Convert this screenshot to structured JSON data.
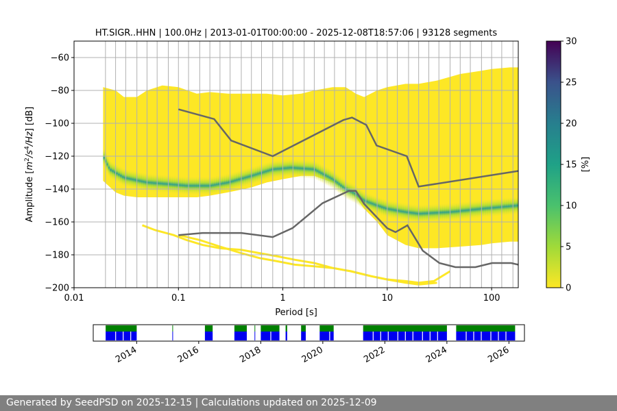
{
  "chart_data": {
    "type": "heatmap",
    "title": "HT.SIGR..HHN | 100.0Hz | 2013-01-01T00:00:00 - 2025-12-08T18:57:06 | 93128 segments",
    "xlabel": "Period [s]",
    "ylabel": {
      "pre": "Amplitude [",
      "m": "m",
      "m_exp": "2",
      "slash": "/",
      "s": "s",
      "s_exp": "4",
      "hz": "/Hz",
      "post": "] [dB]"
    },
    "x_scale": "log",
    "xlim": [
      0.01,
      180
    ],
    "ylim": [
      -200,
      -50
    ],
    "x_ticks": [
      {
        "v": 0.01,
        "label": "0.01"
      },
      {
        "v": 0.1,
        "label": "0.1"
      },
      {
        "v": 1,
        "label": "1"
      },
      {
        "v": 10,
        "label": "10"
      },
      {
        "v": 100,
        "label": "100"
      }
    ],
    "y_ticks": [
      {
        "v": -60,
        "label": "−60"
      },
      {
        "v": -80,
        "label": "−80"
      },
      {
        "v": -100,
        "label": "−100"
      },
      {
        "v": -120,
        "label": "−120"
      },
      {
        "v": -140,
        "label": "−140"
      },
      {
        "v": -160,
        "label": "−160"
      },
      {
        "v": -180,
        "label": "−180"
      },
      {
        "v": -200,
        "label": "−200"
      }
    ],
    "grid": true,
    "grid_periods": [
      0.02,
      0.025,
      0.03125,
      0.04,
      0.05,
      0.0625,
      0.08,
      0.1,
      0.125,
      0.16,
      0.2,
      0.25,
      0.3125,
      0.4,
      0.5,
      0.625,
      0.8,
      1,
      1.25,
      1.6,
      2,
      2.5,
      3.125,
      4,
      5,
      6.25,
      8,
      10,
      12.5,
      16,
      20,
      25,
      31.25,
      40,
      50,
      62.5,
      80,
      100,
      125,
      160
    ],
    "psd_region": {
      "period": [
        0.019,
        0.025,
        0.03,
        0.04,
        0.05,
        0.07,
        0.1,
        0.15,
        0.2,
        0.3,
        0.5,
        0.7,
        1,
        1.5,
        2,
        3,
        4,
        5,
        6,
        8,
        10,
        15,
        20,
        30,
        50,
        80,
        100,
        150,
        180
      ],
      "upper": [
        -78,
        -80,
        -84,
        -84,
        -80,
        -77,
        -78,
        -82,
        -81,
        -82,
        -82,
        -82,
        -83,
        -82,
        -80,
        -78,
        -78,
        -82,
        -84,
        -80,
        -78,
        -76,
        -76,
        -74,
        -70,
        -68,
        -67,
        -66,
        -66
      ],
      "lower": [
        -135,
        -142,
        -144,
        -145,
        -145,
        -145,
        -145,
        -145,
        -144,
        -142,
        -139,
        -136,
        -134,
        -132,
        -132,
        -136,
        -140,
        -145,
        -152,
        -160,
        -168,
        -174,
        -176,
        -176,
        -175,
        -174,
        -173,
        -172,
        -172
      ]
    },
    "outlier_lines": [
      {
        "period": [
          0.045,
          0.06,
          0.09,
          0.12,
          0.17,
          0.25,
          0.4,
          0.6,
          0.9,
          1.3,
          2,
          3,
          4.5,
          7,
          10,
          15,
          20,
          28,
          40
        ],
        "db": [
          -162,
          -165,
          -168,
          -171,
          -174,
          -176,
          -177,
          -179,
          -181,
          -183,
          -185,
          -188,
          -190,
          -193,
          -195,
          -196,
          -197,
          -196,
          -190
        ]
      },
      {
        "period": [
          0.1,
          0.16,
          0.25,
          0.4,
          0.6,
          0.9,
          1.3,
          2,
          3,
          4.5,
          7,
          10,
          15,
          20,
          30
        ],
        "db": [
          -168,
          -171,
          -175,
          -179,
          -182,
          -184,
          -186,
          -187,
          -188,
          -190,
          -193,
          -195,
          -197,
          -198,
          -197
        ]
      }
    ],
    "mode_line": {
      "period": [
        0.019,
        0.022,
        0.03,
        0.05,
        0.08,
        0.12,
        0.2,
        0.3,
        0.5,
        0.8,
        1.2,
        2,
        3,
        4,
        5,
        6,
        8,
        10,
        15,
        20,
        40,
        80,
        180
      ],
      "db": [
        -120,
        -128,
        -133,
        -136,
        -137,
        -138,
        -138,
        -136,
        -132,
        -128,
        -127,
        -128,
        -134,
        -140,
        -143,
        -147,
        -150,
        -152,
        -154,
        -155,
        -154,
        -152,
        -150
      ]
    },
    "nhnm": {
      "period": [
        0.1,
        0.22,
        0.32,
        0.8,
        3.8,
        4.6,
        6.3,
        7.9,
        15.4,
        20,
        180
      ],
      "db": [
        -91.5,
        -97.4,
        -110.5,
        -120,
        -98,
        -96.5,
        -101,
        -113.5,
        -120,
        -138.5,
        -129
      ]
    },
    "nlnm": {
      "period": [
        0.1,
        0.17,
        0.4,
        0.8,
        1.24,
        2.4,
        4.3,
        5,
        6,
        10,
        12,
        15.6,
        21.9,
        31.6,
        45,
        70,
        101,
        154,
        180
      ],
      "db": [
        -168,
        -166.7,
        -166.7,
        -169.2,
        -163.7,
        -148.6,
        -141.1,
        -141.1,
        -149,
        -163.8,
        -166.2,
        -162.1,
        -177.5,
        -185,
        -187.5,
        -187.5,
        -185,
        -185,
        -186
      ]
    },
    "colorbar": {
      "label": "[%]",
      "min": 0,
      "max": 30,
      "ticks": [
        0,
        5,
        10,
        15,
        20,
        25,
        30
      ]
    },
    "colors": {
      "low": "#fde725",
      "mid": "#5ec962",
      "teal": "#21918c",
      "high": "#440154",
      "model_line": "#666666",
      "grid": "#b0b0b0"
    },
    "timeline": {
      "years": [
        2014,
        2016,
        2018,
        2020,
        2022,
        2024,
        2026
      ],
      "range": [
        2012.6,
        2026.5
      ],
      "segments": [
        [
          2013.0,
          2014.0
        ],
        [
          2015.15,
          2015.17
        ],
        [
          2016.2,
          2016.45
        ],
        [
          2017.15,
          2017.55
        ],
        [
          2017.8,
          2017.82
        ],
        [
          2018.0,
          2018.6
        ],
        [
          2018.8,
          2018.85
        ],
        [
          2019.3,
          2019.45
        ],
        [
          2019.9,
          2020.35
        ],
        [
          2021.3,
          2024.0
        ],
        [
          2024.3,
          2026.2
        ]
      ],
      "colors": {
        "data": "#0000ee",
        "availability": "#008000"
      }
    }
  },
  "footer": "Generated by SeedPSD on 2025-12-15 | Calculations updated on 2025-12-09"
}
